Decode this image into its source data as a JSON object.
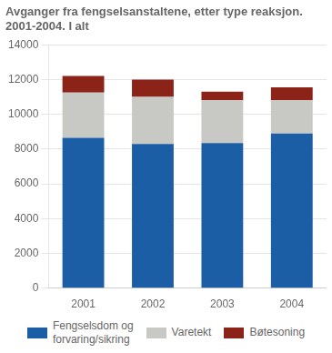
{
  "chart_data": {
    "type": "bar",
    "stacked": true,
    "title": "Avganger fra fengselsanstaltene, etter type reaksjon.",
    "subtitle": "2001-2004. I alt",
    "categories": [
      "2001",
      "2002",
      "2003",
      "2004"
    ],
    "series": [
      {
        "name": "Fengselsdom og\nforvaring/sikring",
        "color": "#1B5EA6",
        "values": [
          8650,
          8300,
          8350,
          8900
        ]
      },
      {
        "name": "Varetekt",
        "color": "#C8C8C4",
        "values": [
          2600,
          2700,
          2450,
          1900
        ]
      },
      {
        "name": "Bøtesoning",
        "color": "#8B2318",
        "values": [
          950,
          1000,
          500,
          750
        ]
      }
    ],
    "ylim": [
      0,
      14000
    ],
    "yticks": [
      0,
      2000,
      4000,
      6000,
      8000,
      10000,
      12000,
      14000
    ],
    "grid": "y",
    "legend": "bottom"
  }
}
